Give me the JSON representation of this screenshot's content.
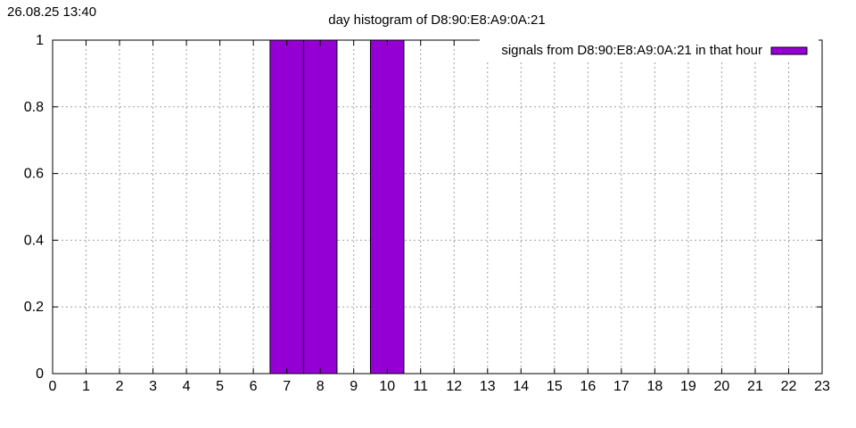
{
  "timestamp": "26.08.25 13:40",
  "chart_data": {
    "type": "bar",
    "title": "day histogram of D8:90:E8:A9:0A:21",
    "xlabel": "",
    "ylabel": "",
    "xlim": [
      0,
      23
    ],
    "ylim": [
      0,
      1
    ],
    "x_ticks": [
      "0",
      "1",
      "2",
      "3",
      "4",
      "5",
      "6",
      "7",
      "8",
      "9",
      "10",
      "11",
      "12",
      "13",
      "14",
      "15",
      "16",
      "17",
      "18",
      "19",
      "20",
      "21",
      "22",
      "23"
    ],
    "y_ticks": [
      "0",
      "0.2",
      "0.4",
      "0.6",
      "0.8",
      "1"
    ],
    "grid": true,
    "legend": {
      "placement": "top-right"
    },
    "series": [
      {
        "name": "signals from D8:90:E8:A9:0A:21 in that hour",
        "color": "#9400d3",
        "x": [
          7,
          8,
          10
        ],
        "values": [
          1,
          1,
          1
        ]
      }
    ]
  }
}
